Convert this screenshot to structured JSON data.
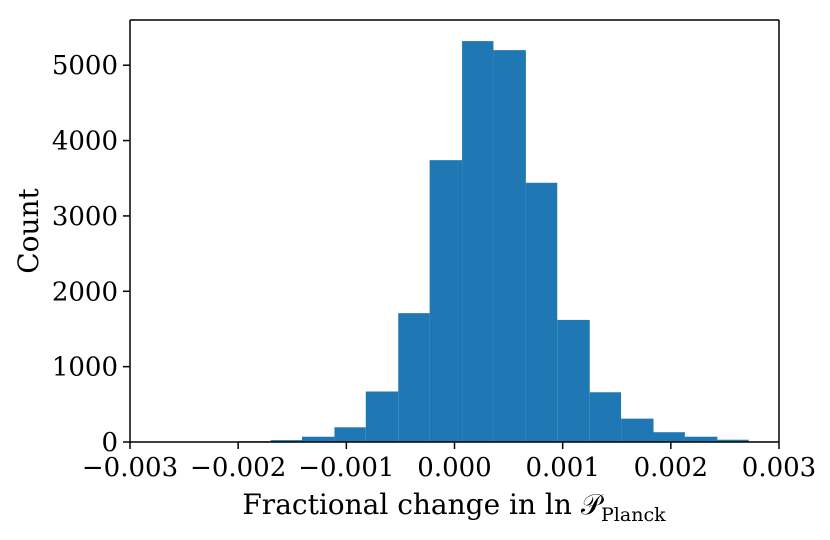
{
  "chart_data": {
    "type": "histogram",
    "xlabel": "Fractional change in ln 𝒫",
    "xlabel_subscript": "Planck",
    "ylabel": "Count",
    "xlim": [
      -0.003,
      0.003
    ],
    "ylim": [
      0,
      5600
    ],
    "xticks": [
      -0.003,
      -0.002,
      -0.001,
      0.0,
      0.001,
      0.002,
      0.003
    ],
    "xtick_labels": [
      "−0.003",
      "−0.002",
      "−0.001",
      "0.000",
      "0.001",
      "0.002",
      "0.003"
    ],
    "yticks": [
      0,
      1000,
      2000,
      3000,
      4000,
      5000
    ],
    "ytick_labels": [
      "0",
      "1000",
      "2000",
      "3000",
      "4000",
      "5000"
    ],
    "bar_color": "#1f77b4",
    "grid": false,
    "bins": [
      {
        "x0": -0.002,
        "x1": -0.0017,
        "count": 10
      },
      {
        "x0": -0.0017,
        "x1": -0.00141,
        "count": 25
      },
      {
        "x0": -0.00141,
        "x1": -0.00111,
        "count": 70
      },
      {
        "x0": -0.00111,
        "x1": -0.00082,
        "count": 195
      },
      {
        "x0": -0.00082,
        "x1": -0.00052,
        "count": 670
      },
      {
        "x0": -0.00052,
        "x1": -0.00023,
        "count": 1710
      },
      {
        "x0": -0.00023,
        "x1": 7e-05,
        "count": 3740
      },
      {
        "x0": 7e-05,
        "x1": 0.00036,
        "count": 5320
      },
      {
        "x0": 0.00036,
        "x1": 0.00066,
        "count": 5200
      },
      {
        "x0": 0.00066,
        "x1": 0.00095,
        "count": 3440
      },
      {
        "x0": 0.00095,
        "x1": 0.00125,
        "count": 1620
      },
      {
        "x0": 0.00125,
        "x1": 0.00154,
        "count": 660
      },
      {
        "x0": 0.00154,
        "x1": 0.00184,
        "count": 310
      },
      {
        "x0": 0.00184,
        "x1": 0.00213,
        "count": 130
      },
      {
        "x0": 0.00213,
        "x1": 0.00243,
        "count": 70
      },
      {
        "x0": 0.00243,
        "x1": 0.00272,
        "count": 30
      },
      {
        "x0": 0.00272,
        "x1": 0.003,
        "count": 8
      }
    ]
  }
}
